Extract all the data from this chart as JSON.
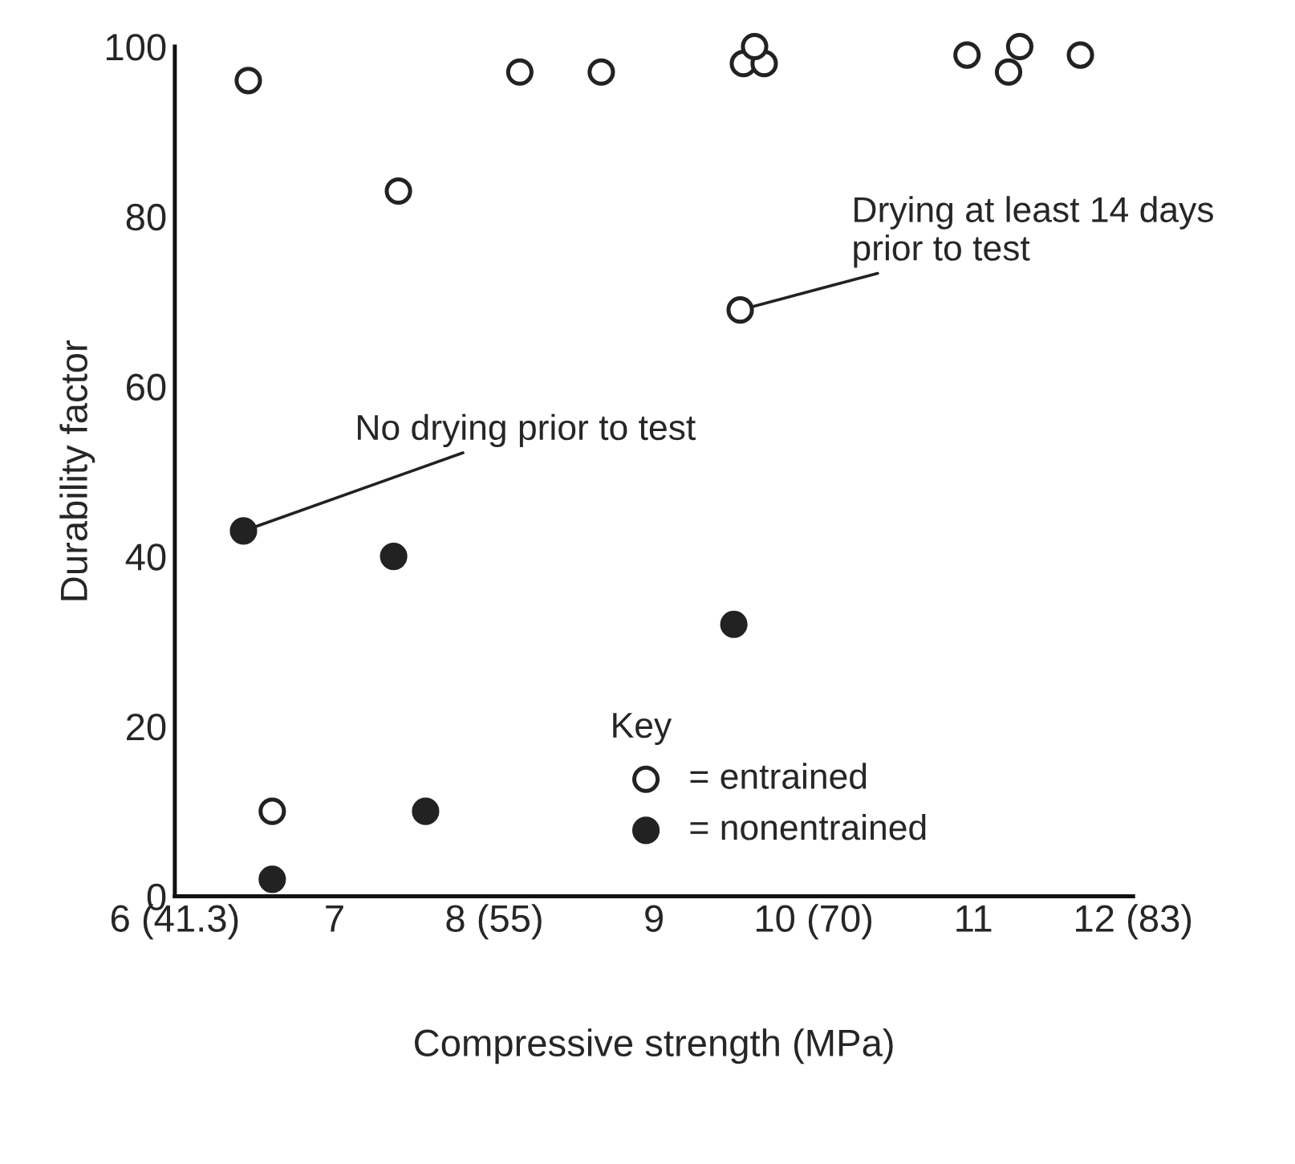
{
  "chart_data": {
    "type": "scatter",
    "xlabel": "Compressive strength (MPa)",
    "ylabel": "Durability factor",
    "xlim": [
      6,
      12
    ],
    "ylim": [
      0,
      100
    ],
    "xticks": [
      {
        "value": 6,
        "label": "6 (41.3)"
      },
      7,
      {
        "value": 8,
        "label": "8 (55)"
      },
      9,
      {
        "value": 10,
        "label": "10 (70)"
      },
      11,
      {
        "value": 12,
        "label": "12 (83)"
      }
    ],
    "yticks": [
      0,
      20,
      40,
      60,
      80,
      100
    ],
    "legend": "bottom",
    "legend_title": "Key",
    "grid": false,
    "series": [
      {
        "name": "= entrained",
        "color": "#ffffff",
        "marker": "circle",
        "x": [
          6.46,
          8.16,
          8.67,
          9.56,
          9.69,
          9.63,
          10.96,
          11.22,
          11.29,
          11.67,
          7.4,
          9.54,
          6.61
        ],
        "values": [
          96,
          97,
          97,
          98,
          98,
          100,
          99,
          97,
          100,
          99,
          83,
          69,
          10
        ]
      },
      {
        "name": "= nonentrained",
        "color": "#222222",
        "marker": "circle",
        "x": [
          6.43,
          7.37,
          9.5,
          7.57,
          6.61
        ],
        "values": [
          43,
          40,
          32,
          10,
          2
        ]
      }
    ],
    "annotations": [
      {
        "text": "No drying prior to test",
        "x": 6.43,
        "y": 43
      },
      {
        "text": "Drying at least 14 days\nprior to test",
        "x": 9.54,
        "y": 69
      }
    ]
  }
}
